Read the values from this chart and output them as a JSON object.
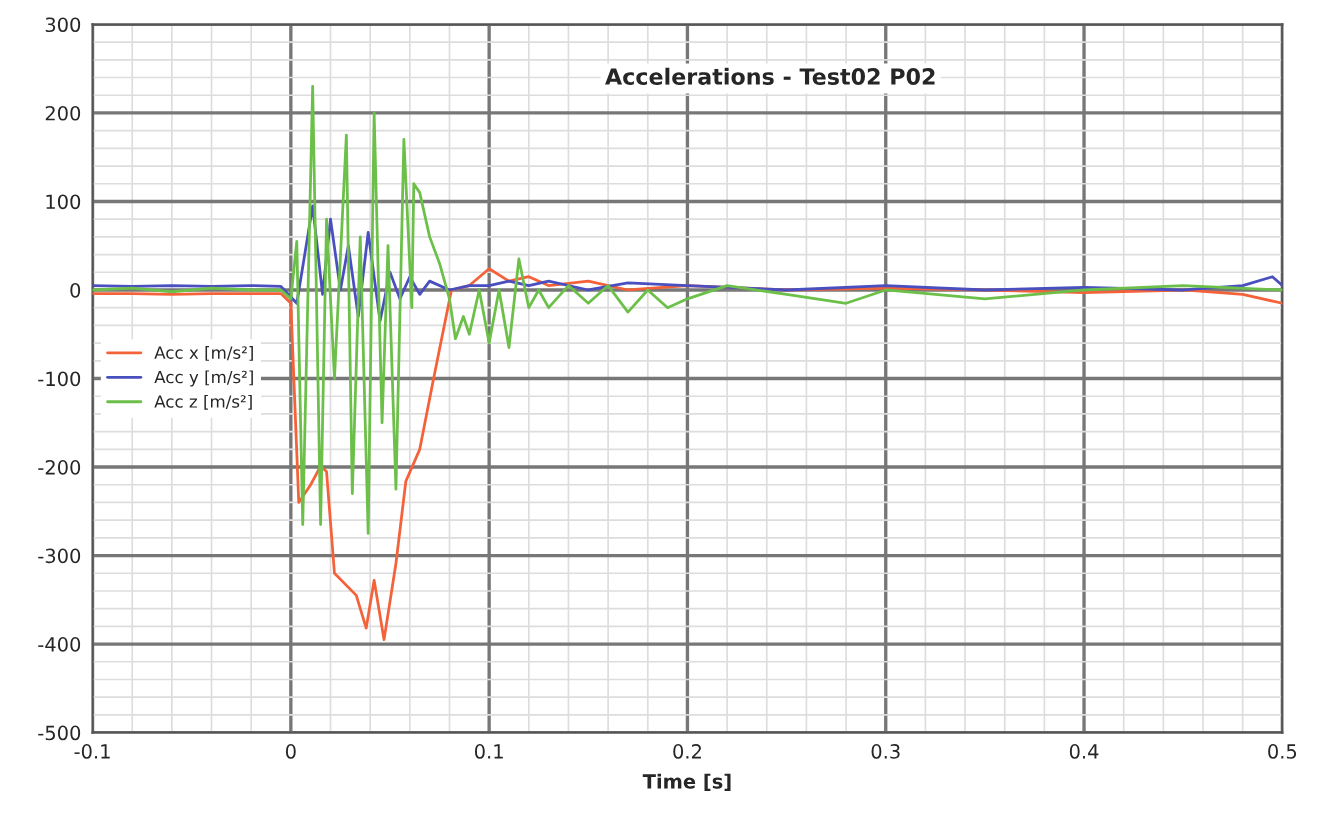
{
  "chart_data": {
    "type": "line",
    "title": "Accelerations - Test02 P02",
    "xlabel": "Time [s]",
    "xlim": [
      -0.1,
      0.5
    ],
    "xticks": [
      -0.1,
      0,
      0.1,
      0.2,
      0.3,
      0.4,
      0.5
    ],
    "ylim": [
      -500,
      300
    ],
    "yticks": [
      -500,
      -400,
      -300,
      -200,
      -100,
      0,
      100,
      200,
      300
    ],
    "grid": true,
    "legend": "left",
    "marker": "none",
    "line_style": "solid",
    "series": [
      {
        "name": "Acc x [m/s²]",
        "color": "#f4623a",
        "x": [
          -0.1,
          -0.08,
          -0.06,
          -0.04,
          -0.02,
          -0.005,
          0.0,
          0.004,
          0.01,
          0.015,
          0.018,
          0.022,
          0.033,
          0.038,
          0.042,
          0.047,
          0.053,
          0.058,
          0.065,
          0.072,
          0.081,
          0.09,
          0.1,
          0.11,
          0.12,
          0.13,
          0.15,
          0.17,
          0.2,
          0.25,
          0.3,
          0.35,
          0.4,
          0.45,
          0.48,
          0.5
        ],
        "values": [
          -4,
          -4,
          -5,
          -4,
          -4,
          -4,
          -15,
          -240,
          -220,
          -199,
          -205,
          -320,
          -345,
          -382,
          -328,
          -395,
          -309,
          -216,
          -180,
          -100,
          0,
          5,
          24,
          10,
          15,
          5,
          10,
          0,
          5,
          0,
          2,
          0,
          -3,
          0,
          -5,
          -15
        ]
      },
      {
        "name": "Acc y [m/s²]",
        "color": "#4a4fbf",
        "x": [
          -0.1,
          -0.08,
          -0.06,
          -0.04,
          -0.02,
          -0.005,
          0.003,
          0.011,
          0.016,
          0.02,
          0.025,
          0.029,
          0.034,
          0.039,
          0.045,
          0.05,
          0.055,
          0.06,
          0.065,
          0.07,
          0.08,
          0.09,
          0.1,
          0.11,
          0.12,
          0.13,
          0.15,
          0.17,
          0.2,
          0.25,
          0.3,
          0.35,
          0.4,
          0.45,
          0.48,
          0.495,
          0.5
        ],
        "values": [
          5,
          4,
          5,
          4,
          5,
          4,
          -15,
          95,
          -5,
          80,
          0,
          50,
          -30,
          65,
          -35,
          20,
          -10,
          15,
          -5,
          10,
          0,
          5,
          5,
          10,
          5,
          10,
          0,
          8,
          5,
          0,
          5,
          0,
          3,
          0,
          5,
          15,
          5
        ]
      },
      {
        "name": "Acc z [m/s²]",
        "color": "#6cc04a",
        "x": [
          -0.1,
          -0.08,
          -0.06,
          -0.04,
          -0.02,
          -0.005,
          0.0,
          0.003,
          0.006,
          0.011,
          0.015,
          0.018,
          0.022,
          0.028,
          0.031,
          0.035,
          0.039,
          0.042,
          0.046,
          0.049,
          0.053,
          0.057,
          0.061,
          0.062,
          0.065,
          0.07,
          0.075,
          0.08,
          0.083,
          0.087,
          0.09,
          0.095,
          0.1,
          0.105,
          0.11,
          0.115,
          0.12,
          0.125,
          0.13,
          0.14,
          0.15,
          0.16,
          0.17,
          0.18,
          0.19,
          0.2,
          0.22,
          0.25,
          0.28,
          0.3,
          0.35,
          0.4,
          0.45,
          0.5
        ],
        "values": [
          0,
          2,
          -2,
          2,
          0,
          0,
          -10,
          55,
          -265,
          230,
          -265,
          80,
          -100,
          175,
          -230,
          60,
          -275,
          200,
          -150,
          50,
          -225,
          170,
          -20,
          120,
          110,
          60,
          30,
          -10,
          -55,
          -30,
          -50,
          0,
          -60,
          0,
          -65,
          35,
          -20,
          0,
          -20,
          5,
          -15,
          5,
          -25,
          0,
          -20,
          -10,
          5,
          -5,
          -15,
          0,
          -10,
          0,
          5,
          0
        ]
      }
    ]
  }
}
